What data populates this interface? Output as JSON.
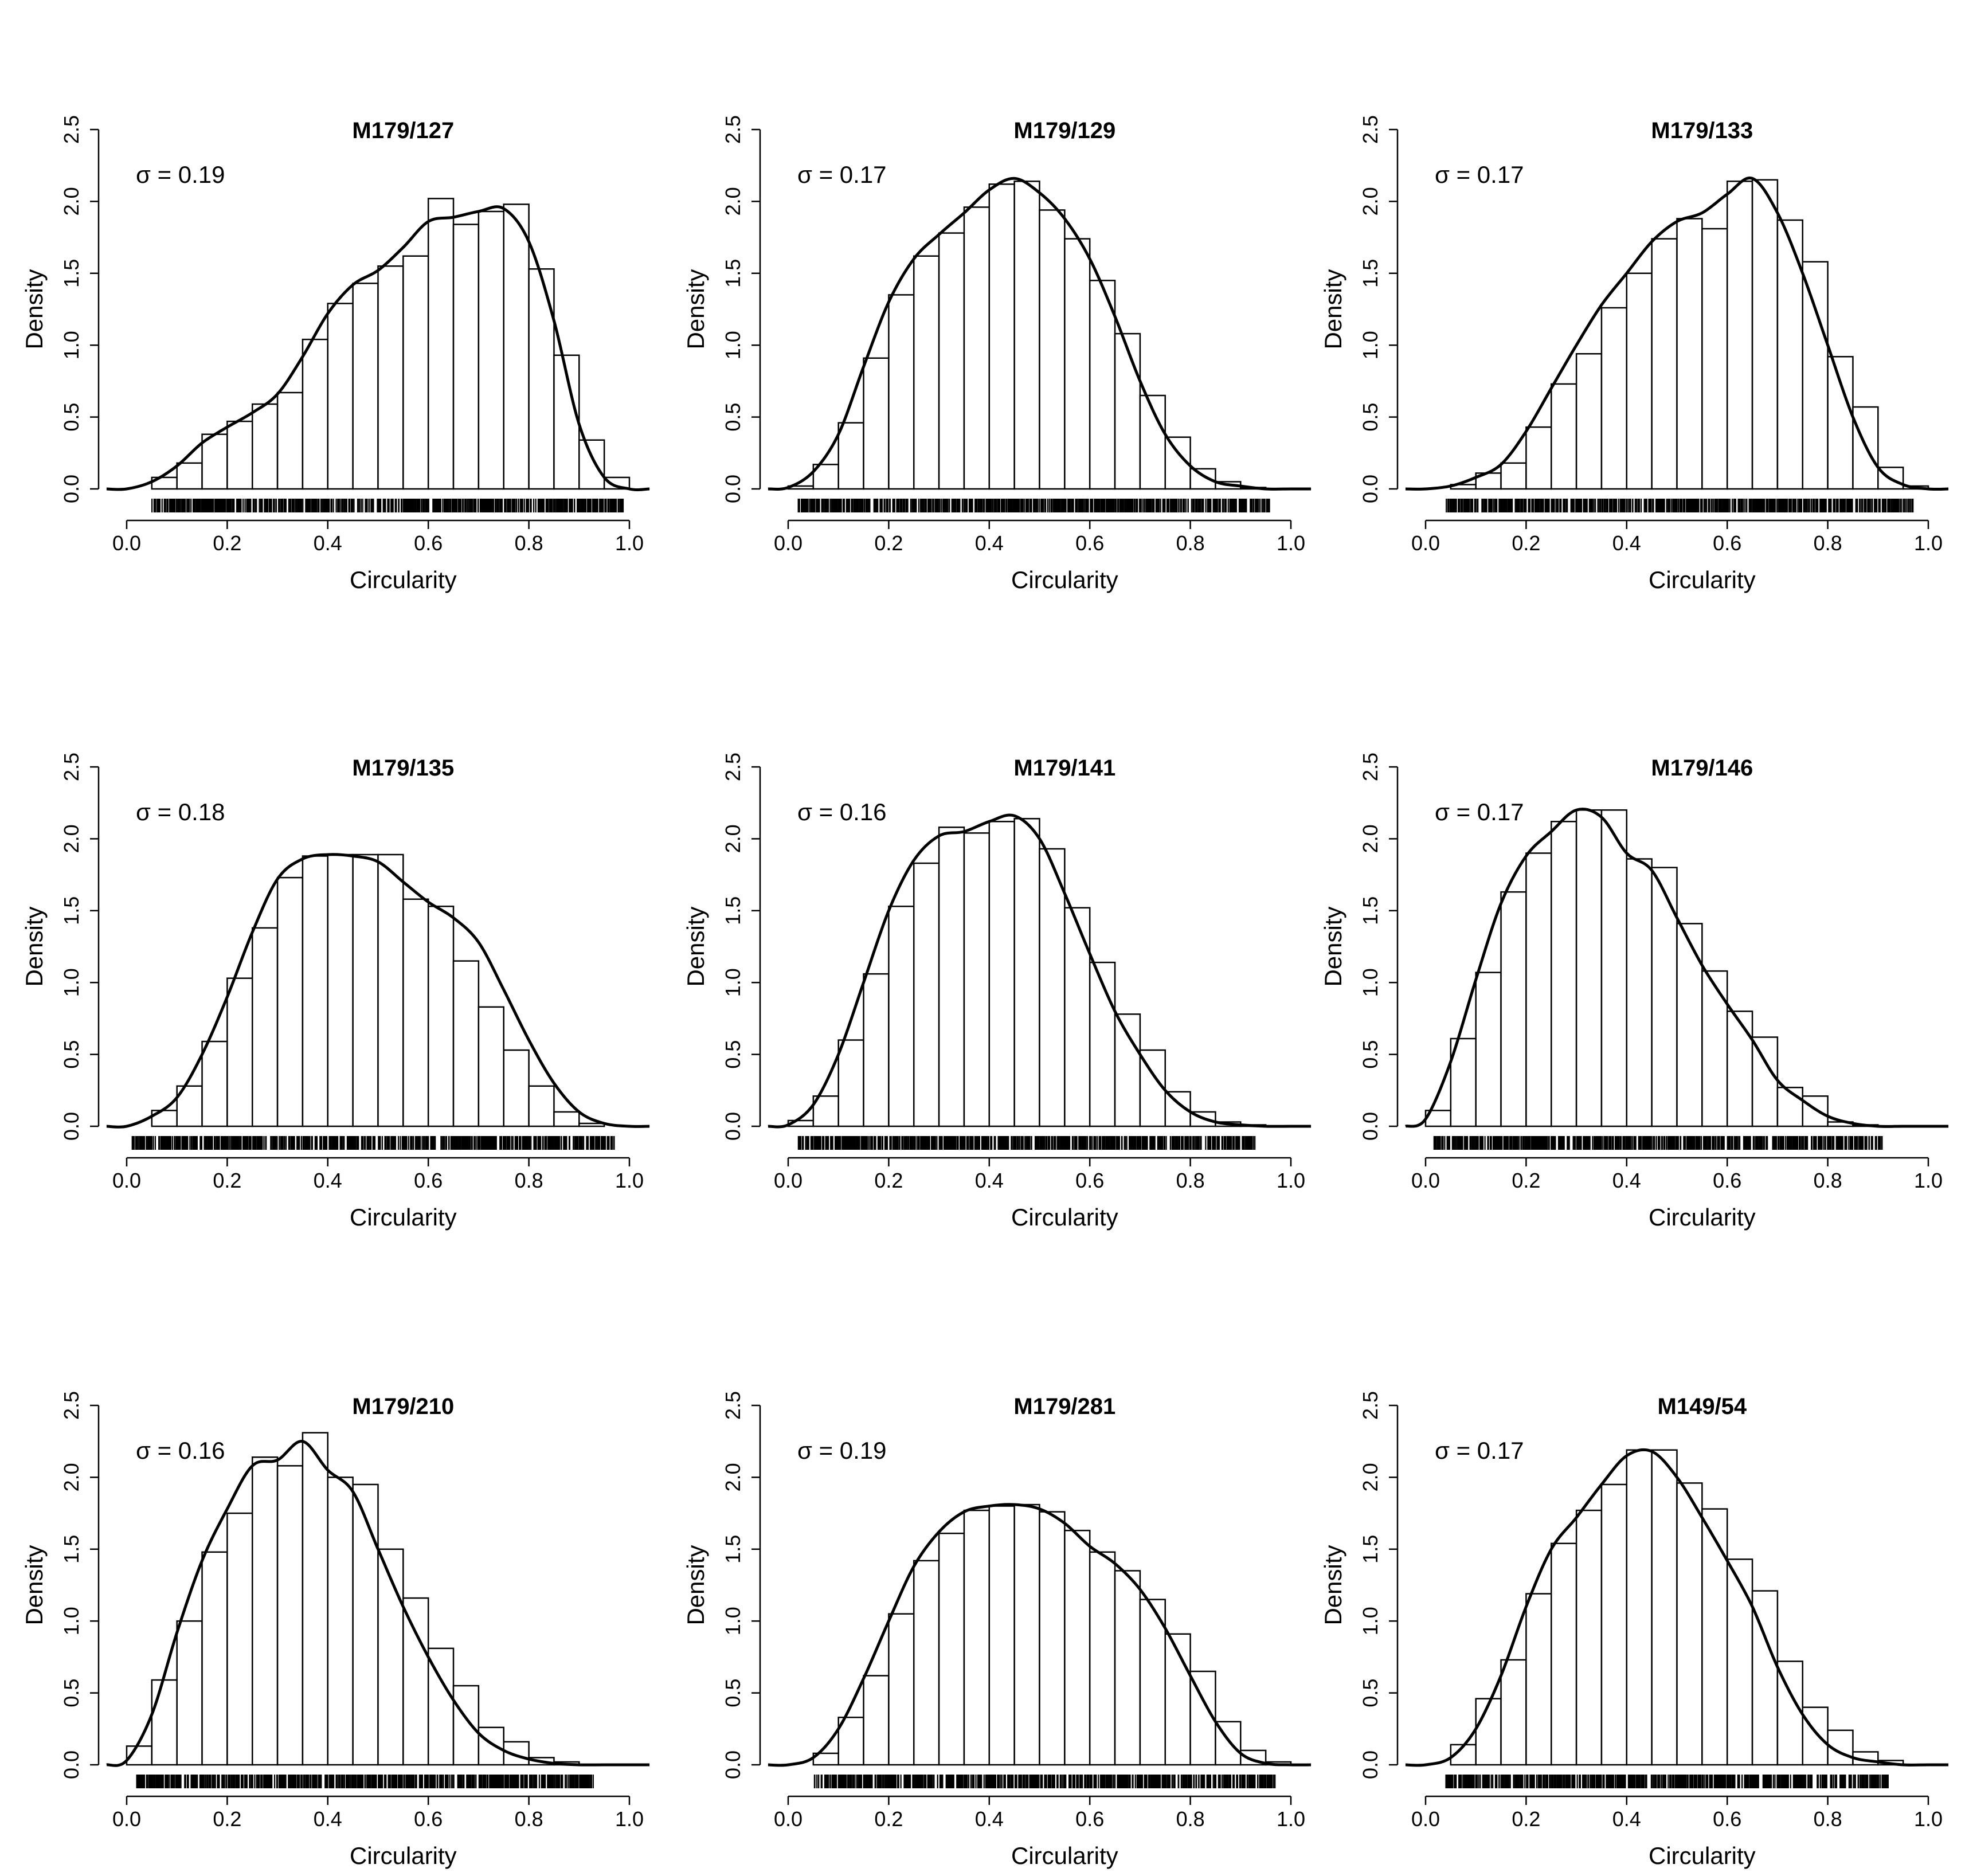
{
  "figure": {
    "x_axis_label": "Circularity",
    "y_axis_label": "Density",
    "x_ticks": [
      "0.0",
      "0.2",
      "0.4",
      "0.6",
      "0.8",
      "1.0"
    ],
    "y_ticks": [
      "0.0",
      "0.5",
      "1.0",
      "1.5",
      "2.0",
      "2.5"
    ]
  },
  "chart_data": [
    {
      "type": "bar",
      "title": "M179/127",
      "annotation": "σ = 0.19",
      "xlabel": "Circularity",
      "ylabel": "Density",
      "xlim": [
        0,
        1
      ],
      "ylim": [
        0,
        2.5
      ],
      "bin_width": 0.05,
      "bin_starts": [
        0.05,
        0.1,
        0.15,
        0.2,
        0.25,
        0.3,
        0.35,
        0.4,
        0.45,
        0.5,
        0.55,
        0.6,
        0.65,
        0.7,
        0.75,
        0.8,
        0.85,
        0.9,
        0.95
      ],
      "values": [
        0.08,
        0.18,
        0.38,
        0.47,
        0.59,
        0.67,
        1.04,
        1.29,
        1.43,
        1.55,
        1.62,
        2.02,
        1.84,
        1.93,
        1.98,
        1.53,
        0.93,
        0.34,
        0.08
      ],
      "density_curve": {
        "x": [
          0.0,
          0.05,
          0.1,
          0.15,
          0.2,
          0.25,
          0.3,
          0.35,
          0.4,
          0.45,
          0.5,
          0.55,
          0.6,
          0.65,
          0.7,
          0.75,
          0.8,
          0.85,
          0.9,
          0.95,
          1.0
        ],
        "y": [
          0.0,
          0.05,
          0.16,
          0.32,
          0.43,
          0.53,
          0.66,
          0.92,
          1.22,
          1.42,
          1.52,
          1.68,
          1.86,
          1.89,
          1.93,
          1.95,
          1.72,
          1.17,
          0.45,
          0.08,
          0.0
        ]
      },
      "rug": [
        0.05,
        0.99
      ]
    },
    {
      "type": "bar",
      "title": "M179/129",
      "annotation": "σ = 0.17",
      "xlabel": "Circularity",
      "ylabel": "Density",
      "xlim": [
        0,
        1
      ],
      "ylim": [
        0,
        2.5
      ],
      "bin_width": 0.05,
      "bin_starts": [
        0.0,
        0.05,
        0.1,
        0.15,
        0.2,
        0.25,
        0.3,
        0.35,
        0.4,
        0.45,
        0.5,
        0.55,
        0.6,
        0.65,
        0.7,
        0.75,
        0.8,
        0.85,
        0.9
      ],
      "values": [
        0.02,
        0.17,
        0.46,
        0.91,
        1.35,
        1.62,
        1.78,
        1.96,
        2.12,
        2.14,
        1.94,
        1.74,
        1.45,
        1.08,
        0.65,
        0.36,
        0.14,
        0.05,
        0.01
      ],
      "density_curve": {
        "x": [
          0.0,
          0.05,
          0.1,
          0.15,
          0.2,
          0.25,
          0.3,
          0.35,
          0.4,
          0.45,
          0.5,
          0.55,
          0.6,
          0.65,
          0.7,
          0.75,
          0.8,
          0.85,
          0.9,
          0.95,
          1.0
        ],
        "y": [
          0.01,
          0.12,
          0.38,
          0.85,
          1.3,
          1.6,
          1.77,
          1.92,
          2.08,
          2.16,
          2.06,
          1.88,
          1.6,
          1.2,
          0.75,
          0.38,
          0.16,
          0.05,
          0.02,
          0.0,
          0.0
        ]
      },
      "rug": [
        0.02,
        0.96
      ]
    },
    {
      "type": "bar",
      "title": "M179/133",
      "annotation": "σ = 0.17",
      "xlabel": "Circularity",
      "ylabel": "Density",
      "xlim": [
        0,
        1
      ],
      "ylim": [
        0,
        2.5
      ],
      "bin_width": 0.05,
      "bin_starts": [
        0.05,
        0.1,
        0.15,
        0.2,
        0.25,
        0.3,
        0.35,
        0.4,
        0.45,
        0.5,
        0.55,
        0.6,
        0.65,
        0.7,
        0.75,
        0.8,
        0.85,
        0.9,
        0.95
      ],
      "values": [
        0.03,
        0.11,
        0.18,
        0.43,
        0.73,
        0.94,
        1.26,
        1.5,
        1.74,
        1.88,
        1.81,
        2.14,
        2.15,
        1.87,
        1.58,
        0.92,
        0.57,
        0.15,
        0.02
      ],
      "density_curve": {
        "x": [
          0.0,
          0.05,
          0.1,
          0.15,
          0.2,
          0.25,
          0.3,
          0.35,
          0.4,
          0.45,
          0.5,
          0.55,
          0.6,
          0.65,
          0.7,
          0.75,
          0.8,
          0.85,
          0.9,
          0.95,
          1.0
        ],
        "y": [
          0.0,
          0.02,
          0.08,
          0.17,
          0.4,
          0.7,
          1.0,
          1.28,
          1.5,
          1.72,
          1.86,
          1.92,
          2.05,
          2.16,
          1.92,
          1.5,
          1.0,
          0.5,
          0.15,
          0.03,
          0.0
        ]
      },
      "rug": [
        0.04,
        0.97
      ]
    },
    {
      "type": "bar",
      "title": "M179/135",
      "annotation": "σ = 0.18",
      "xlabel": "Circularity",
      "ylabel": "Density",
      "xlim": [
        0,
        1
      ],
      "ylim": [
        0,
        2.5
      ],
      "bin_width": 0.05,
      "bin_starts": [
        0.05,
        0.1,
        0.15,
        0.2,
        0.25,
        0.3,
        0.35,
        0.4,
        0.45,
        0.5,
        0.55,
        0.6,
        0.65,
        0.7,
        0.75,
        0.8,
        0.85,
        0.9
      ],
      "values": [
        0.11,
        0.28,
        0.59,
        1.03,
        1.38,
        1.73,
        1.88,
        1.89,
        1.89,
        1.89,
        1.58,
        1.53,
        1.15,
        0.83,
        0.53,
        0.28,
        0.1,
        0.02
      ],
      "density_curve": {
        "x": [
          0.0,
          0.05,
          0.1,
          0.15,
          0.2,
          0.25,
          0.3,
          0.35,
          0.4,
          0.45,
          0.5,
          0.55,
          0.6,
          0.65,
          0.7,
          0.75,
          0.8,
          0.85,
          0.9,
          0.95,
          1.0
        ],
        "y": [
          0.0,
          0.07,
          0.2,
          0.5,
          0.9,
          1.35,
          1.72,
          1.86,
          1.89,
          1.88,
          1.84,
          1.7,
          1.56,
          1.45,
          1.28,
          0.95,
          0.6,
          0.3,
          0.1,
          0.02,
          0.0
        ]
      },
      "rug": [
        0.01,
        0.97
      ]
    },
    {
      "type": "bar",
      "title": "M179/141",
      "annotation": "σ = 0.16",
      "xlabel": "Circularity",
      "ylabel": "Density",
      "xlim": [
        0,
        1
      ],
      "ylim": [
        0,
        2.5
      ],
      "bin_width": 0.05,
      "bin_starts": [
        0.0,
        0.05,
        0.1,
        0.15,
        0.2,
        0.25,
        0.3,
        0.35,
        0.4,
        0.45,
        0.5,
        0.55,
        0.6,
        0.65,
        0.7,
        0.75,
        0.8,
        0.85,
        0.9
      ],
      "values": [
        0.04,
        0.21,
        0.6,
        1.06,
        1.53,
        1.83,
        2.08,
        2.04,
        2.12,
        2.14,
        1.93,
        1.52,
        1.14,
        0.78,
        0.53,
        0.24,
        0.1,
        0.03,
        0.01
      ],
      "density_curve": {
        "x": [
          0.0,
          0.05,
          0.1,
          0.15,
          0.2,
          0.25,
          0.3,
          0.35,
          0.4,
          0.45,
          0.5,
          0.55,
          0.6,
          0.65,
          0.7,
          0.75,
          0.8,
          0.85,
          0.9,
          0.95,
          1.0
        ],
        "y": [
          0.01,
          0.15,
          0.5,
          1.0,
          1.5,
          1.85,
          2.02,
          2.05,
          2.12,
          2.16,
          2.0,
          1.62,
          1.2,
          0.8,
          0.5,
          0.25,
          0.1,
          0.03,
          0.01,
          0.0,
          0.0
        ]
      },
      "rug": [
        0.02,
        0.93
      ]
    },
    {
      "type": "bar",
      "title": "M179/146",
      "annotation": "σ = 0.17",
      "xlabel": "Circularity",
      "ylabel": "Density",
      "xlim": [
        0,
        1
      ],
      "ylim": [
        0,
        2.5
      ],
      "bin_width": 0.05,
      "bin_starts": [
        0.0,
        0.05,
        0.1,
        0.15,
        0.2,
        0.25,
        0.3,
        0.35,
        0.4,
        0.45,
        0.5,
        0.55,
        0.6,
        0.65,
        0.7,
        0.75,
        0.8,
        0.85
      ],
      "values": [
        0.11,
        0.61,
        1.07,
        1.63,
        1.9,
        2.12,
        2.2,
        2.2,
        1.86,
        1.8,
        1.41,
        1.08,
        0.8,
        0.62,
        0.27,
        0.21,
        0.03,
        0.01
      ],
      "density_curve": {
        "x": [
          0.0,
          0.05,
          0.1,
          0.15,
          0.2,
          0.25,
          0.3,
          0.35,
          0.4,
          0.45,
          0.5,
          0.55,
          0.6,
          0.65,
          0.7,
          0.75,
          0.8,
          0.85,
          0.9,
          0.95,
          1.0
        ],
        "y": [
          0.05,
          0.45,
          1.02,
          1.55,
          1.88,
          2.05,
          2.2,
          2.15,
          1.9,
          1.78,
          1.45,
          1.12,
          0.85,
          0.6,
          0.32,
          0.18,
          0.07,
          0.02,
          0.0,
          0.0,
          0.0
        ]
      },
      "rug": [
        0.01,
        0.91
      ]
    },
    {
      "type": "bar",
      "title": "M179/210",
      "annotation": "σ = 0.16",
      "xlabel": "Circularity",
      "ylabel": "Density",
      "xlim": [
        0,
        1
      ],
      "ylim": [
        0,
        2.5
      ],
      "bin_width": 0.05,
      "bin_starts": [
        0.0,
        0.05,
        0.1,
        0.15,
        0.2,
        0.25,
        0.3,
        0.35,
        0.4,
        0.45,
        0.5,
        0.55,
        0.6,
        0.65,
        0.7,
        0.75,
        0.8,
        0.85
      ],
      "values": [
        0.13,
        0.59,
        1.0,
        1.48,
        1.75,
        2.14,
        2.08,
        2.31,
        2.0,
        1.95,
        1.5,
        1.16,
        0.81,
        0.55,
        0.26,
        0.16,
        0.05,
        0.02
      ],
      "density_curve": {
        "x": [
          0.0,
          0.05,
          0.1,
          0.15,
          0.2,
          0.25,
          0.3,
          0.35,
          0.4,
          0.45,
          0.5,
          0.55,
          0.6,
          0.65,
          0.7,
          0.75,
          0.8,
          0.85,
          0.9,
          0.95,
          1.0
        ],
        "y": [
          0.03,
          0.35,
          0.92,
          1.42,
          1.78,
          2.08,
          2.12,
          2.25,
          2.05,
          1.9,
          1.5,
          1.1,
          0.75,
          0.45,
          0.22,
          0.1,
          0.04,
          0.01,
          0.0,
          0.0,
          0.0
        ]
      },
      "rug": [
        0.02,
        0.93
      ]
    },
    {
      "type": "bar",
      "title": "M179/281",
      "annotation": "σ = 0.19",
      "xlabel": "Circularity",
      "ylabel": "Density",
      "xlim": [
        0,
        1
      ],
      "ylim": [
        0,
        2.5
      ],
      "bin_width": 0.05,
      "bin_starts": [
        0.05,
        0.1,
        0.15,
        0.2,
        0.25,
        0.3,
        0.35,
        0.4,
        0.45,
        0.5,
        0.55,
        0.6,
        0.65,
        0.7,
        0.75,
        0.8,
        0.85,
        0.9,
        0.95
      ],
      "values": [
        0.08,
        0.33,
        0.62,
        1.05,
        1.42,
        1.61,
        1.77,
        1.8,
        1.81,
        1.76,
        1.63,
        1.48,
        1.35,
        1.15,
        0.91,
        0.65,
        0.3,
        0.1,
        0.02
      ],
      "density_curve": {
        "x": [
          0.0,
          0.05,
          0.1,
          0.15,
          0.2,
          0.25,
          0.3,
          0.35,
          0.4,
          0.45,
          0.5,
          0.55,
          0.6,
          0.65,
          0.7,
          0.75,
          0.8,
          0.85,
          0.9,
          0.95,
          1.0
        ],
        "y": [
          0.0,
          0.05,
          0.25,
          0.6,
          1.0,
          1.38,
          1.62,
          1.76,
          1.8,
          1.81,
          1.78,
          1.68,
          1.52,
          1.4,
          1.22,
          0.95,
          0.62,
          0.3,
          0.08,
          0.01,
          0.0
        ]
      },
      "rug": [
        0.05,
        0.97
      ]
    },
    {
      "type": "bar",
      "title": "M149/54",
      "annotation": "σ = 0.17",
      "xlabel": "Circularity",
      "ylabel": "Density",
      "xlim": [
        0,
        1
      ],
      "ylim": [
        0,
        2.5
      ],
      "bin_width": 0.05,
      "bin_starts": [
        0.05,
        0.1,
        0.15,
        0.2,
        0.25,
        0.3,
        0.35,
        0.4,
        0.45,
        0.5,
        0.55,
        0.6,
        0.65,
        0.7,
        0.75,
        0.8,
        0.85,
        0.9
      ],
      "values": [
        0.14,
        0.46,
        0.73,
        1.19,
        1.54,
        1.77,
        1.95,
        2.19,
        2.19,
        1.96,
        1.78,
        1.43,
        1.21,
        0.72,
        0.4,
        0.24,
        0.09,
        0.03
      ],
      "density_curve": {
        "x": [
          0.0,
          0.05,
          0.1,
          0.15,
          0.2,
          0.25,
          0.3,
          0.35,
          0.4,
          0.45,
          0.5,
          0.55,
          0.6,
          0.65,
          0.7,
          0.75,
          0.8,
          0.85,
          0.9,
          0.95,
          1.0
        ],
        "y": [
          0.0,
          0.05,
          0.25,
          0.62,
          1.1,
          1.5,
          1.72,
          1.95,
          2.15,
          2.18,
          2.0,
          1.72,
          1.42,
          1.1,
          0.68,
          0.35,
          0.14,
          0.05,
          0.02,
          0.0,
          0.0
        ]
      },
      "rug": [
        0.04,
        0.92
      ]
    }
  ]
}
